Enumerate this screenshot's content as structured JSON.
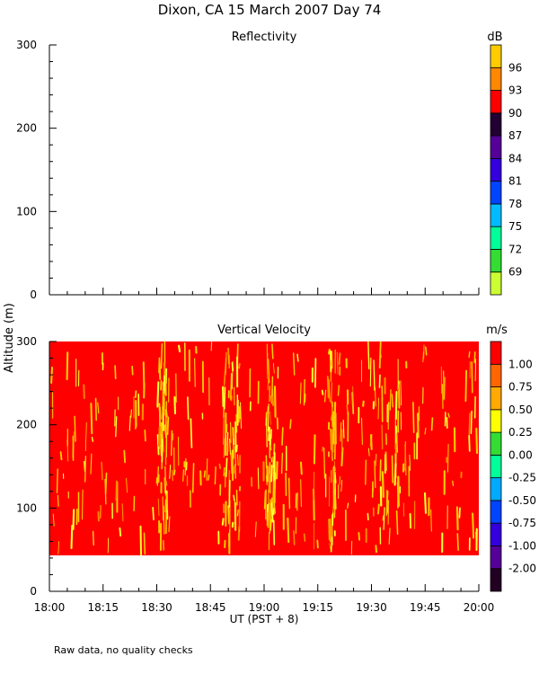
{
  "header": {
    "title": "Dixon, CA 15 March 2007  Day  74"
  },
  "footer": {
    "note": "Raw data, no quality checks"
  },
  "axes": {
    "ylabel": "Altitude (m)",
    "xlabel": "UT  (PST + 8)"
  },
  "chart_data": [
    {
      "type": "heatmap",
      "title": "Reflectivity",
      "xlim": [
        "18:00",
        "20:00"
      ],
      "ylim": [
        0,
        300
      ],
      "xticks": [
        "18:00",
        "18:15",
        "18:30",
        "18:45",
        "19:00",
        "19:15",
        "19:30",
        "19:45",
        "20:00"
      ],
      "yticks": [
        0,
        100,
        200,
        300
      ],
      "xlabel": "",
      "ylabel": "Altitude (m)",
      "colorbar": {
        "unit": "dB",
        "levels": [
          69,
          72,
          75,
          78,
          81,
          84,
          87,
          90,
          93,
          96
        ],
        "colors": [
          "#ccff33",
          "#33dd33",
          "#00ff99",
          "#00bbff",
          "#0044ff",
          "#3300dd",
          "#550099",
          "#220033",
          "#ff0000",
          "#ff8800",
          "#ffcc00"
        ]
      },
      "data": "no echoes displayed"
    },
    {
      "type": "heatmap",
      "title": "Vertical Velocity",
      "xlim": [
        "18:00",
        "20:00"
      ],
      "ylim": [
        0,
        300
      ],
      "xticks": [
        "18:00",
        "18:15",
        "18:30",
        "18:45",
        "19:00",
        "19:15",
        "19:30",
        "19:45",
        "20:00"
      ],
      "yticks": [
        0,
        100,
        200,
        300
      ],
      "xlabel": "UT  (PST + 8)",
      "ylabel": "Altitude (m)",
      "colorbar": {
        "unit": "m/s",
        "levels": [
          -2.0,
          -1.0,
          -0.75,
          -0.5,
          -0.25,
          0.0,
          0.25,
          0.5,
          0.75,
          1.0
        ],
        "labels": [
          "-2.00",
          "-1.00",
          "-0.75",
          "-0.50",
          "-0.25",
          "0.00",
          "0.25",
          "0.50",
          "0.75",
          "1.00"
        ],
        "colors": [
          "#220022",
          "#550099",
          "#3300dd",
          "#0044ff",
          "#00aaff",
          "#00ff99",
          "#33dd33",
          "#ffff00",
          "#ffaa00",
          "#ff6600",
          "#ff0000"
        ]
      },
      "data_altitude_range": [
        40,
        300
      ],
      "dominant_value": "> 1.00 m/s",
      "streak_value": "0.25 to 0.75 m/s"
    }
  ]
}
